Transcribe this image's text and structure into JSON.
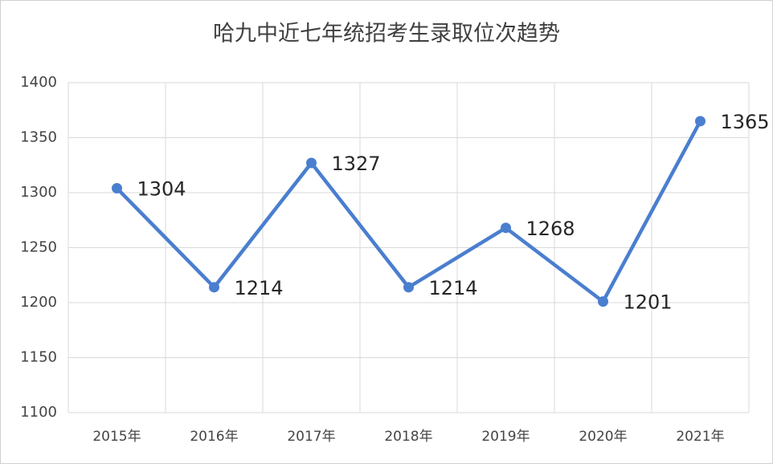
{
  "chart_data": {
    "type": "line",
    "title": "哈九中近七年统招考生录取位次趋势",
    "categories": [
      "2015年",
      "2016年",
      "2017年",
      "2018年",
      "2019年",
      "2020年",
      "2021年"
    ],
    "series": [
      {
        "name": "录取位次",
        "color": "#4a7ecf",
        "values": [
          1304,
          1214,
          1327,
          1214,
          1268,
          1201,
          1365
        ]
      }
    ],
    "ylim": [
      1100,
      1400
    ],
    "yticks": [
      1100,
      1150,
      1200,
      1250,
      1300,
      1350,
      1400
    ],
    "grid": true
  }
}
